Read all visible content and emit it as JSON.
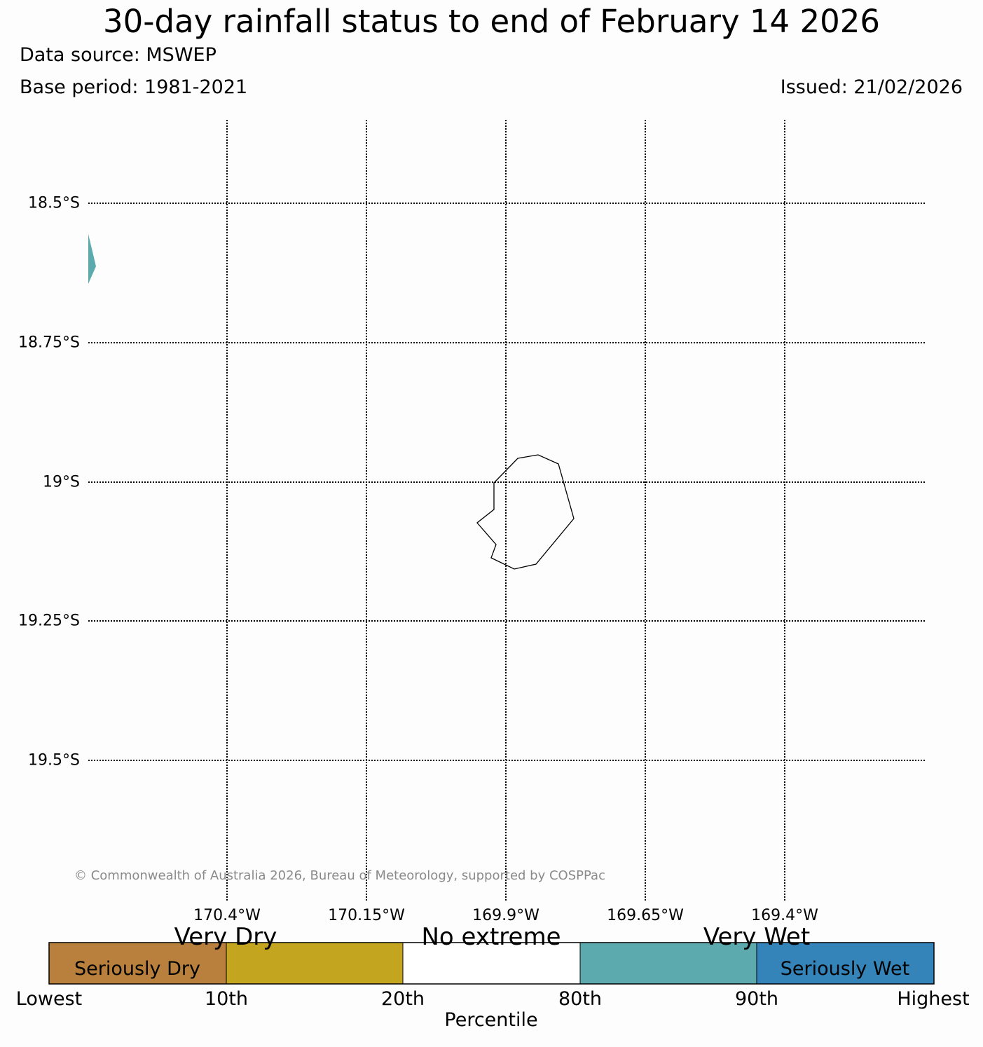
{
  "header": {
    "title": "30-day rainfall status to end of February 14 2026",
    "data_source": "Data source: MSWEP",
    "base_period": "Base period: 1981-2021",
    "issued": "Issued: 21/02/2026"
  },
  "map": {
    "lat_labels": [
      "18.5°S",
      "18.75°S",
      "19°S",
      "19.25°S",
      "19.5°S"
    ],
    "lon_labels": [
      "170.4°W",
      "170.15°W",
      "169.9°W",
      "169.65°W",
      "169.4°W"
    ],
    "copyright": "© Commonwealth of Australia 2026, Bureau of Meteorology, supported by COSPPac",
    "island_name": "",
    "patch_category": "Very Wet"
  },
  "legend": {
    "categories": [
      {
        "name": "Seriously Dry",
        "color": "#b9803d"
      },
      {
        "name": "Very Dry",
        "color": "#c4a520"
      },
      {
        "name": "No extreme",
        "color": "#ffffff"
      },
      {
        "name": "Very Wet",
        "color": "#5ca9ae"
      },
      {
        "name": "Seriously Wet",
        "color": "#3484ba"
      }
    ],
    "upper_labels": [
      "Very Dry",
      "No extreme",
      "Very Wet"
    ],
    "inner_labels": [
      "Seriously Dry",
      "Seriously Wet"
    ],
    "ticks": [
      "Lowest",
      "10th",
      "20th",
      "80th",
      "90th",
      "Highest"
    ],
    "axis_label": "Percentile"
  }
}
